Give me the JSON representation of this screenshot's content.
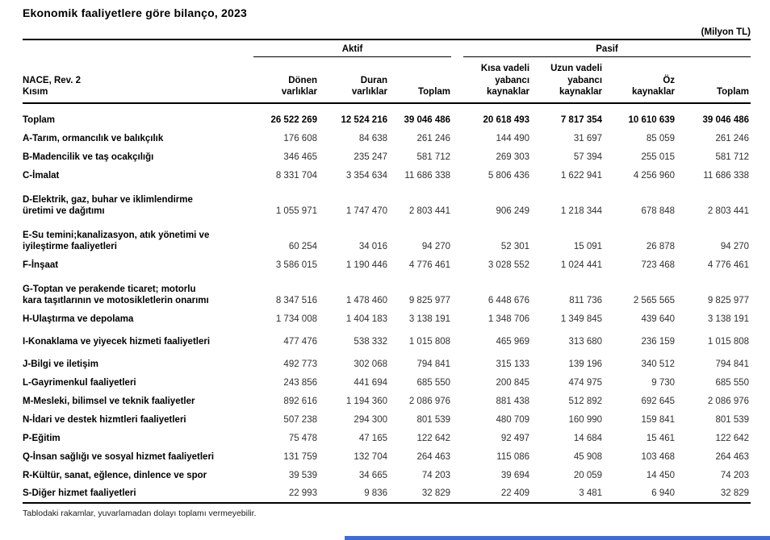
{
  "page": {
    "title": "Ekonomik faaliyetlere göre bilanço, 2023",
    "unit": "(Milyon TL)",
    "footnote": "Tablodaki rakamlar, yuvarlamadan dolayı toplamı vermeyebilir.",
    "accent_bar_color": "#3f6bd8"
  },
  "table": {
    "row_header": {
      "line1": "NACE, Rev. 2",
      "line2": "Kısım"
    },
    "groups": [
      {
        "label": "Aktif",
        "span": 3
      },
      {
        "label": "Pasif",
        "span": 4
      }
    ],
    "columns": [
      "Dönen\nvarlıklar",
      "Duran\nvarlıklar",
      "Toplam",
      "Kısa vadeli\nyabancı\nkaynaklar",
      "Uzun vadeli\nyabancı\nkaynaklar",
      "Öz\nkaynaklar",
      "Toplam"
    ],
    "rows": [
      {
        "label": "Toplam",
        "bold": true,
        "size": "1",
        "values": [
          "26 522 269",
          "12 524 216",
          "39 046 486",
          "20 618 493",
          "7 817 354",
          "10 610 639",
          "39 046 486"
        ]
      },
      {
        "label": "A-Tarım, ormancılık ve balıkçılık",
        "bold": false,
        "size": "1",
        "values": [
          "176 608",
          "84 638",
          "261 246",
          "144 490",
          "31 697",
          "85 059",
          "261 246"
        ]
      },
      {
        "label": "B-Madencilik ve taş ocakçılığı",
        "bold": false,
        "size": "1",
        "values": [
          "346 465",
          "235 247",
          "581 712",
          "269 303",
          "57 394",
          "255 015",
          "581 712"
        ]
      },
      {
        "label": "C-İmalat",
        "bold": false,
        "size": "1",
        "values": [
          "8 331 704",
          "3 354 634",
          "11 686 338",
          "5 806 436",
          "1 622 941",
          "4 256 960",
          "11 686 338"
        ]
      },
      {
        "label": "D-Elektrik, gaz, buhar ve iklimlendirme\nüretimi ve dağıtımı",
        "bold": false,
        "size": "2",
        "values": [
          "1 055 971",
          "1 747 470",
          "2 803 441",
          "906 249",
          "1 218 344",
          "678 848",
          "2 803 441"
        ]
      },
      {
        "label": "E-Su temini;kanalizasyon, atık yönetimi ve\niyileştirme faaliyetleri",
        "bold": false,
        "size": "2",
        "values": [
          "60 254",
          "34 016",
          "94 270",
          "52 301",
          "15 091",
          "26 878",
          "94 270"
        ]
      },
      {
        "label": "F-İnşaat",
        "bold": false,
        "size": "1",
        "values": [
          "3 586 015",
          "1 190 446",
          "4 776 461",
          "3 028 552",
          "1 024 441",
          "723 468",
          "4 776 461"
        ]
      },
      {
        "label": "G-Toptan ve perakende ticaret; motorlu\nkara taşıtlarının ve motosikletlerin onarımı",
        "bold": false,
        "size": "2",
        "values": [
          "8 347 516",
          "1 478 460",
          "9 825 977",
          "6 448 676",
          "811 736",
          "2 565 565",
          "9 825 977"
        ]
      },
      {
        "label": "H-Ulaştırma ve depolama",
        "bold": false,
        "size": "1",
        "values": [
          "1 734 008",
          "1 404 183",
          "3 138 191",
          "1 348 706",
          "1 349 845",
          "439 640",
          "3 138 191"
        ]
      },
      {
        "label": "I-Konaklama ve yiyecek hizmeti faaliyetleri",
        "bold": false,
        "size": "1.5",
        "values": [
          "477 476",
          "538 332",
          "1 015 808",
          "465 969",
          "313 680",
          "236 159",
          "1 015 808"
        ]
      },
      {
        "label": "J-Bilgi ve iletişim",
        "bold": false,
        "size": "1.5",
        "values": [
          "492 773",
          "302 068",
          "794 841",
          "315 133",
          "139 196",
          "340 512",
          "794 841"
        ]
      },
      {
        "label": "L-Gayrimenkul faaliyetleri",
        "bold": false,
        "size": "1",
        "values": [
          "243 856",
          "441 694",
          "685 550",
          "200 845",
          "474 975",
          "9 730",
          "685 550"
        ]
      },
      {
        "label": "M-Mesleki, bilimsel ve teknik faaliyetler",
        "bold": false,
        "size": "1",
        "values": [
          "892 616",
          "1 194 360",
          "2 086 976",
          "881 438",
          "512 892",
          "692 645",
          "2 086 976"
        ]
      },
      {
        "label": "N-İdari ve destek hizmtleri faaliyetleri",
        "bold": false,
        "size": "1",
        "values": [
          "507 238",
          "294 300",
          "801 539",
          "480 709",
          "160 990",
          "159 841",
          "801 539"
        ]
      },
      {
        "label": "P-Eğitim",
        "bold": false,
        "size": "1",
        "values": [
          "75 478",
          "47 165",
          "122 642",
          "92 497",
          "14 684",
          "15 461",
          "122 642"
        ]
      },
      {
        "label": "Q-İnsan sağlığı ve sosyal hizmet faaliyetleri",
        "bold": false,
        "size": "1",
        "values": [
          "131 759",
          "132 704",
          "264 463",
          "115 086",
          "45 908",
          "103 468",
          "264 463"
        ]
      },
      {
        "label": "R-Kültür, sanat, eğlence, dinlence ve spor",
        "bold": false,
        "size": "1",
        "values": [
          "39 539",
          "34 665",
          "74 203",
          "39 694",
          "20 059",
          "14 450",
          "74 203"
        ]
      },
      {
        "label": "S-Diğer hizmet faaliyetleri",
        "bold": false,
        "size": "1",
        "values": [
          "22 993",
          "9 836",
          "32 829",
          "22 409",
          "3 481",
          "6 940",
          "32 829"
        ]
      }
    ]
  }
}
